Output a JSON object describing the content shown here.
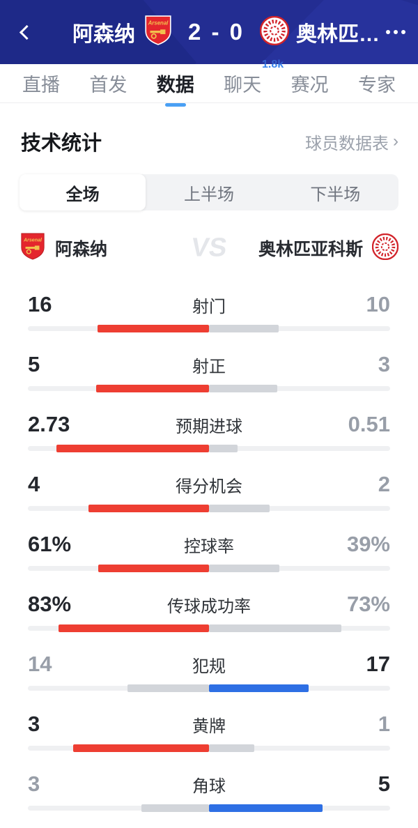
{
  "header": {
    "home_team": "阿森纳",
    "away_team": "奥林匹亚科斯",
    "score": "2 - 0"
  },
  "tabs": [
    {
      "label": "直播",
      "selected": false,
      "badge": ""
    },
    {
      "label": "首发",
      "selected": false,
      "badge": ""
    },
    {
      "label": "数据",
      "selected": true,
      "badge": ""
    },
    {
      "label": "聊天",
      "selected": false,
      "badge": "1.8k"
    },
    {
      "label": "赛况",
      "selected": false,
      "badge": ""
    },
    {
      "label": "专家",
      "selected": false,
      "badge": ""
    }
  ],
  "stats_section": {
    "title": "技术统计",
    "link_label": "球员数据表",
    "link_chevron": "›"
  },
  "periods": [
    {
      "label": "全场",
      "selected": true
    },
    {
      "label": "上半场",
      "selected": false
    },
    {
      "label": "下半场",
      "selected": false
    }
  ],
  "teams": {
    "home": "阿森纳",
    "away": "奥林匹亚科斯",
    "vs_label": "VS"
  },
  "colors": {
    "home_bar": "#ee3e32",
    "away_bar": "#2e6fe4",
    "neutral_bar": "#d2d5da",
    "track": "#eff0f2"
  },
  "stats": [
    {
      "label": "射门",
      "home": "16",
      "away": "10"
    },
    {
      "label": "射正",
      "home": "5",
      "away": "3"
    },
    {
      "label": "预期进球",
      "home": "2.73",
      "away": "0.51"
    },
    {
      "label": "得分机会",
      "home": "4",
      "away": "2"
    },
    {
      "label": "控球率",
      "home": "61%",
      "away": "39%"
    },
    {
      "label": "传球成功率",
      "home": "83%",
      "away": "73%"
    },
    {
      "label": "犯规",
      "home": "14",
      "away": "17"
    },
    {
      "label": "黄牌",
      "home": "3",
      "away": "1"
    },
    {
      "label": "角球",
      "home": "3",
      "away": "5"
    }
  ]
}
